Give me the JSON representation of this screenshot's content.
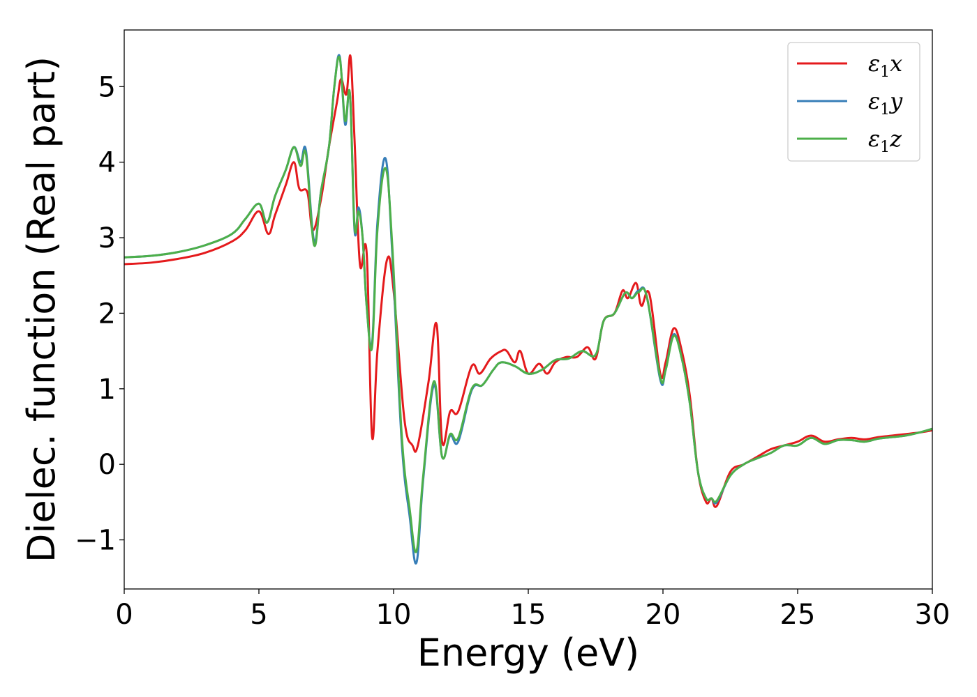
{
  "chart_data": {
    "type": "line",
    "title": "",
    "xlabel": "Energy (eV)",
    "ylabel": "Dielec. function (Real part)",
    "xlim": [
      0,
      30
    ],
    "ylim": [
      -1.65,
      5.75
    ],
    "xticks": [
      0,
      5,
      10,
      15,
      20,
      25,
      30
    ],
    "xtick_labels": [
      "0",
      "5",
      "10",
      "15",
      "20",
      "25",
      "30"
    ],
    "yticks": [
      -1,
      0,
      1,
      2,
      3,
      4,
      5
    ],
    "ytick_labels": [
      "−1",
      "0",
      "1",
      "2",
      "3",
      "4",
      "5"
    ],
    "grid": false,
    "legend_position": "top-right",
    "series": [
      {
        "name": "ε1x",
        "label_base": "ε",
        "label_sub": "1",
        "label_suffix": "x",
        "color": "#e41a1c",
        "x": [
          0,
          1,
          2,
          3,
          4,
          4.5,
          5.0,
          5.35,
          5.6,
          6.0,
          6.3,
          6.5,
          6.8,
          7.0,
          7.3,
          7.6,
          7.9,
          8.05,
          8.25,
          8.4,
          8.55,
          8.75,
          9.0,
          9.2,
          9.4,
          9.75,
          10.0,
          10.4,
          10.7,
          10.9,
          11.3,
          11.6,
          11.8,
          12.1,
          12.4,
          12.9,
          13.2,
          13.6,
          14.0,
          14.2,
          14.5,
          14.7,
          15.0,
          15.4,
          15.7,
          16.0,
          16.4,
          16.8,
          17.2,
          17.5,
          17.8,
          18.2,
          18.5,
          18.7,
          19.0,
          19.2,
          19.5,
          19.9,
          20.1,
          20.4,
          20.7,
          21.0,
          21.3,
          21.6,
          21.8,
          22.0,
          22.5,
          23.0,
          23.5,
          24.0,
          24.5,
          25.0,
          25.5,
          26.0,
          26.5,
          27.0,
          27.5,
          28.0,
          28.5,
          29.0,
          29.5,
          30.0
        ],
        "y": [
          2.65,
          2.67,
          2.72,
          2.8,
          2.95,
          3.1,
          3.35,
          3.05,
          3.3,
          3.7,
          4.0,
          3.65,
          3.6,
          3.1,
          3.5,
          4.2,
          4.8,
          5.1,
          4.9,
          5.4,
          4.3,
          2.65,
          2.8,
          0.37,
          1.5,
          2.7,
          2.3,
          0.6,
          0.25,
          0.25,
          1.1,
          1.85,
          0.3,
          0.7,
          0.7,
          1.3,
          1.2,
          1.4,
          1.5,
          1.5,
          1.35,
          1.5,
          1.2,
          1.33,
          1.2,
          1.35,
          1.42,
          1.42,
          1.55,
          1.4,
          1.9,
          2.0,
          2.3,
          2.2,
          2.4,
          2.1,
          2.25,
          1.2,
          1.35,
          1.8,
          1.5,
          0.9,
          -0.1,
          -0.5,
          -0.45,
          -0.55,
          -0.1,
          0.0,
          0.1,
          0.2,
          0.25,
          0.3,
          0.38,
          0.3,
          0.33,
          0.35,
          0.33,
          0.36,
          0.38,
          0.4,
          0.42,
          0.45
        ]
      },
      {
        "name": "ε1y",
        "label_base": "ε",
        "label_sub": "1",
        "label_suffix": "y",
        "color": "#377eb8",
        "x": [
          0,
          1,
          2,
          3,
          4,
          4.5,
          5.0,
          5.3,
          5.6,
          6.0,
          6.3,
          6.55,
          6.75,
          7.05,
          7.3,
          7.6,
          7.8,
          8.0,
          8.2,
          8.38,
          8.55,
          8.7,
          8.85,
          9.0,
          9.2,
          9.4,
          9.7,
          9.95,
          10.3,
          10.6,
          10.85,
          11.1,
          11.5,
          11.8,
          12.1,
          12.4,
          12.9,
          13.3,
          13.7,
          14.0,
          14.5,
          15.0,
          15.5,
          16.0,
          16.5,
          17.0,
          17.5,
          17.8,
          18.2,
          18.6,
          18.85,
          19.1,
          19.4,
          19.9,
          20.1,
          20.4,
          20.7,
          21.0,
          21.3,
          21.6,
          21.8,
          22.0,
          22.5,
          23.0,
          23.5,
          24.0,
          24.5,
          25.0,
          25.5,
          26.0,
          26.5,
          27.0,
          27.5,
          28.0,
          28.5,
          29.0,
          29.5,
          30.0
        ],
        "y": [
          2.74,
          2.76,
          2.81,
          2.9,
          3.05,
          3.25,
          3.45,
          3.2,
          3.55,
          3.9,
          4.2,
          4.0,
          4.15,
          2.95,
          3.6,
          4.2,
          5.0,
          5.4,
          4.5,
          4.9,
          3.1,
          3.4,
          3.0,
          2.1,
          1.6,
          3.2,
          4.05,
          2.8,
          0.3,
          -0.7,
          -1.3,
          -0.2,
          1.05,
          0.1,
          0.38,
          0.3,
          0.98,
          1.05,
          1.25,
          1.35,
          1.3,
          1.2,
          1.25,
          1.38,
          1.4,
          1.5,
          1.45,
          1.9,
          2.0,
          2.27,
          2.2,
          2.3,
          2.22,
          1.12,
          1.25,
          1.72,
          1.4,
          0.8,
          -0.1,
          -0.45,
          -0.45,
          -0.5,
          -0.15,
          0.0,
          0.08,
          0.15,
          0.25,
          0.25,
          0.35,
          0.27,
          0.32,
          0.32,
          0.3,
          0.34,
          0.36,
          0.38,
          0.42,
          0.47
        ]
      },
      {
        "name": "ε1z",
        "label_base": "ε",
        "label_sub": "1",
        "label_suffix": "z",
        "color": "#4daf4a",
        "x": [
          0,
          1,
          2,
          3,
          4,
          4.5,
          5.0,
          5.3,
          5.6,
          6.0,
          6.3,
          6.55,
          6.75,
          7.05,
          7.3,
          7.6,
          7.8,
          8.0,
          8.2,
          8.38,
          8.55,
          8.7,
          8.85,
          9.0,
          9.2,
          9.4,
          9.7,
          9.95,
          10.3,
          10.6,
          10.85,
          11.1,
          11.5,
          11.8,
          12.1,
          12.4,
          12.9,
          13.3,
          13.7,
          14.0,
          14.5,
          15.0,
          15.5,
          16.0,
          16.5,
          17.0,
          17.5,
          17.8,
          18.2,
          18.6,
          18.85,
          19.1,
          19.4,
          19.9,
          20.1,
          20.4,
          20.7,
          21.0,
          21.3,
          21.6,
          21.8,
          22.0,
          22.5,
          23.0,
          23.5,
          24.0,
          24.5,
          25.0,
          25.5,
          26.0,
          26.5,
          27.0,
          27.5,
          28.0,
          28.5,
          29.0,
          29.5,
          30.0
        ],
        "y": [
          2.74,
          2.76,
          2.81,
          2.9,
          3.05,
          3.25,
          3.45,
          3.2,
          3.55,
          3.9,
          4.2,
          3.95,
          4.1,
          2.9,
          3.6,
          4.2,
          5.0,
          5.38,
          4.55,
          4.9,
          3.15,
          3.35,
          3.0,
          2.1,
          1.55,
          3.1,
          3.92,
          2.9,
          0.4,
          -0.6,
          -1.15,
          -0.15,
          1.1,
          0.1,
          0.4,
          0.35,
          1.0,
          1.05,
          1.25,
          1.35,
          1.3,
          1.2,
          1.25,
          1.38,
          1.4,
          1.5,
          1.45,
          1.9,
          2.0,
          2.27,
          2.2,
          2.28,
          2.22,
          1.15,
          1.25,
          1.7,
          1.4,
          0.8,
          -0.1,
          -0.45,
          -0.45,
          -0.48,
          -0.15,
          0.0,
          0.08,
          0.15,
          0.25,
          0.25,
          0.35,
          0.27,
          0.32,
          0.32,
          0.3,
          0.34,
          0.36,
          0.38,
          0.42,
          0.47
        ]
      }
    ]
  }
}
